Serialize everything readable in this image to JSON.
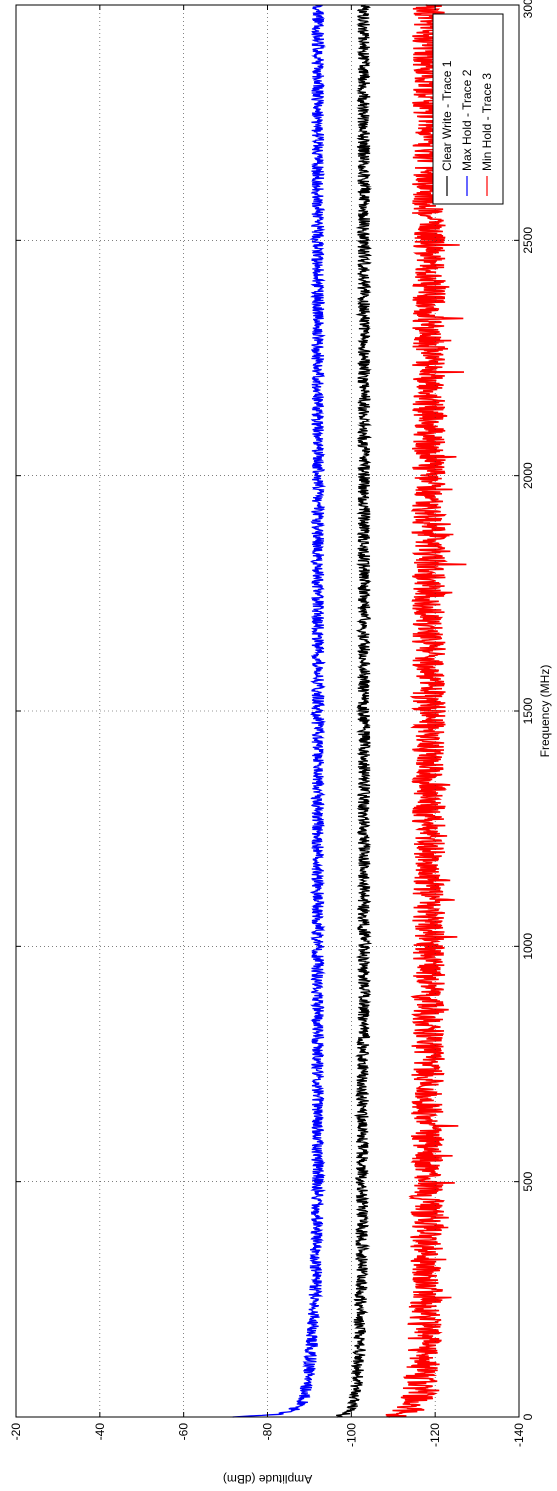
{
  "chart_data": {
    "type": "line",
    "orientation": "rotated-90-counterclockwise",
    "title": "",
    "xlabel": "Frequency (MHz)",
    "ylabel": "Amplitude (dBm)",
    "xlim": [
      0,
      3000
    ],
    "ylim": [
      -140,
      -20
    ],
    "x_ticks": [
      "0",
      "500",
      "1000",
      "1500",
      "2000",
      "2500",
      "3000"
    ],
    "y_ticks": [
      "-140",
      "-120",
      "-100",
      "-80",
      "-60",
      "-40",
      "-20"
    ],
    "grid": true,
    "legend_position": "top-right",
    "series": [
      {
        "name": "Clear Write - Trace 1",
        "color": "#000000",
        "x": [
          0,
          10,
          25,
          50,
          100,
          150,
          200,
          300,
          500,
          1000,
          1500,
          2000,
          2500,
          3000
        ],
        "values": [
          -97,
          -99.5,
          -100.5,
          -101,
          -101.5,
          -102,
          -102,
          -102.5,
          -102.5,
          -103,
          -103,
          -103,
          -103,
          -103
        ],
        "noise_spread_db": 1.5
      },
      {
        "name": "Max Hold - Trace 2",
        "color": "#0000ff",
        "x": [
          0,
          5,
          10,
          25,
          50,
          100,
          150,
          200,
          300,
          500,
          1000,
          1500,
          2000,
          2500,
          3000
        ],
        "values": [
          -71,
          -82,
          -85,
          -88,
          -89,
          -90,
          -90.5,
          -91,
          -91.5,
          -92,
          -92,
          -92,
          -92,
          -92,
          -92
        ],
        "noise_spread_db": 1.5
      },
      {
        "name": "Min Hold - Trace 3",
        "color": "#ff0000",
        "x": [
          0,
          10,
          25,
          50,
          100,
          200,
          300,
          500,
          1000,
          1500,
          2000,
          2500,
          3000
        ],
        "values": [
          -110,
          -113,
          -115,
          -116,
          -117,
          -117.5,
          -118,
          -118,
          -118.5,
          -118.5,
          -118.5,
          -118.5,
          -118.5
        ],
        "noise_spread_db": 4
      }
    ]
  }
}
